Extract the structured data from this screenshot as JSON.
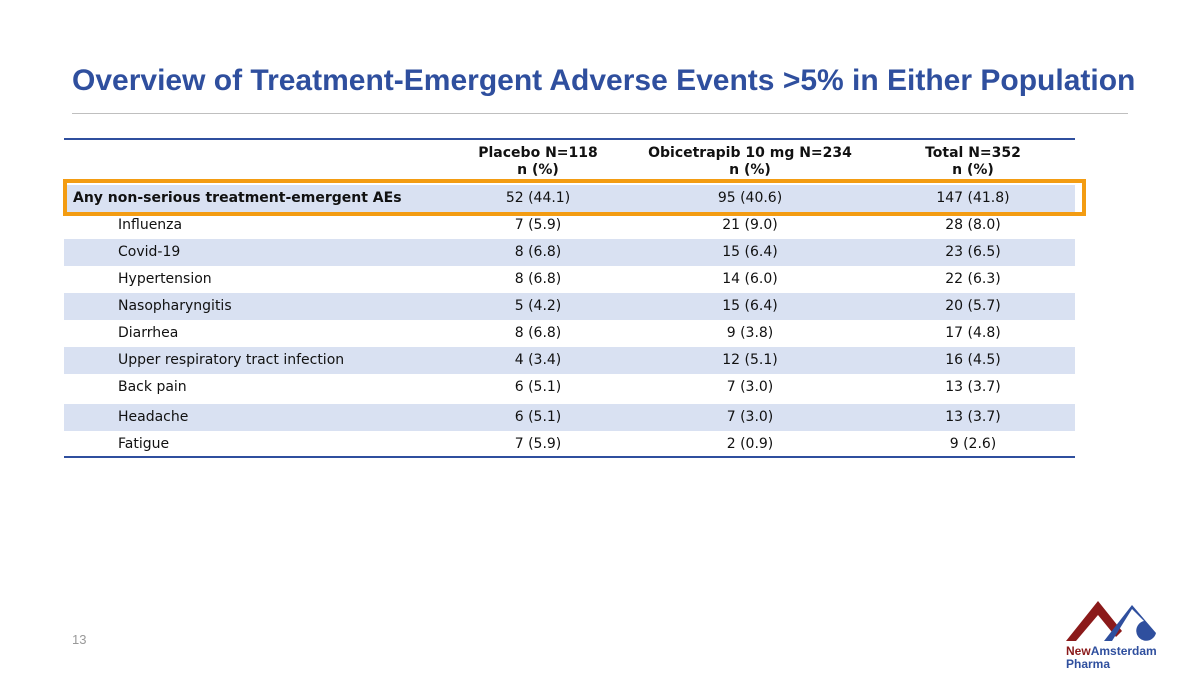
{
  "title": "Overview of Treatment-Emergent Adverse Events >5% in Either Population",
  "table": {
    "columns": [
      {
        "line1": "Placebo N=118",
        "line2": "n (%)"
      },
      {
        "line1": "Obicetrapib 10 mg N=234",
        "line2": "n (%)"
      },
      {
        "line1": "Total N=352",
        "line2": "n (%)"
      }
    ],
    "rows": [
      [
        "Any non-serious treatment-emergent AEs",
        "52 (44.1)",
        "95 (40.6)",
        "147 (41.8)"
      ],
      [
        "Influenza",
        "7 (5.9)",
        "21 (9.0)",
        "28 (8.0)"
      ],
      [
        "Covid-19",
        "8 (6.8)",
        "15 (6.4)",
        "23 (6.5)"
      ],
      [
        "Hypertension",
        "8 (6.8)",
        "14 (6.0)",
        "22 (6.3)"
      ],
      [
        "Nasopharyngitis",
        "5 (4.2)",
        "15 (6.4)",
        "20 (5.7)"
      ],
      [
        "Diarrhea",
        "8 (6.8)",
        "9 (3.8)",
        "17 (4.8)"
      ],
      [
        "Upper respiratory tract infection",
        "4 (3.4)",
        "12 (5.1)",
        "16 (4.5)"
      ],
      [
        "Back pain",
        "6 (5.1)",
        "7 (3.0)",
        "13 (3.7)"
      ],
      [
        "Headache",
        "6 (5.1)",
        "7 (3.0)",
        "13 (3.7)"
      ],
      [
        "Fatigue",
        "7 (5.9)",
        "2 (0.9)",
        "9 (2.6)"
      ]
    ]
  },
  "page_number": "13",
  "logo": {
    "new": "New",
    "amsterdam": "Amsterdam",
    "pharma": "Pharma"
  }
}
